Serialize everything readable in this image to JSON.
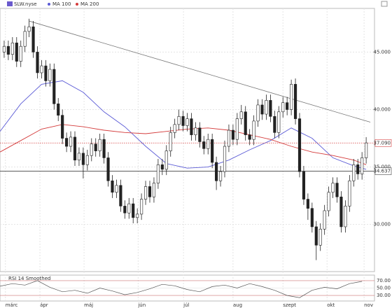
{
  "chart_data": {
    "type": "candlestick",
    "title": "SLW.nyse",
    "xlim": [
      0,
      90
    ],
    "ylim": [
      25.9,
      48.8
    ],
    "yticks": [
      {
        "value": 45,
        "label": "45.000"
      },
      {
        "value": 40,
        "label": "40.000"
      },
      {
        "value": 35,
        "label": "35.000"
      },
      {
        "value": 30,
        "label": "30.000"
      }
    ],
    "xticks": [
      {
        "value": 1.3,
        "label": "márc"
      },
      {
        "value": 9.6,
        "label": "ápr"
      },
      {
        "value": 20.2,
        "label": "máj"
      },
      {
        "value": 33.2,
        "label": "jún"
      },
      {
        "value": 44.1,
        "label": "júl"
      },
      {
        "value": 56,
        "label": "aug"
      },
      {
        "value": 68,
        "label": "szept"
      },
      {
        "value": 78.6,
        "label": "okt"
      },
      {
        "value": 87.5,
        "label": "nov"
      }
    ],
    "grid": true,
    "up_color": "#ffffff",
    "down_color": "#222222",
    "x": [
      1,
      2,
      3,
      4,
      5,
      6,
      7,
      8,
      9,
      10,
      11,
      12,
      13,
      14,
      15,
      16,
      17,
      18,
      19,
      20,
      21,
      22,
      23,
      24,
      25,
      26,
      27,
      28,
      29,
      30,
      31,
      32,
      33,
      34,
      35,
      36,
      37,
      38,
      39,
      40,
      41,
      42,
      43,
      44,
      45,
      46,
      47,
      48,
      49,
      50,
      51,
      52,
      53,
      54,
      55,
      56,
      57,
      58,
      59,
      60,
      61,
      62,
      63,
      64,
      65,
      66,
      67,
      68,
      69,
      70,
      71,
      72,
      73,
      74,
      75,
      76,
      77,
      78,
      79,
      80,
      81,
      82,
      83,
      84,
      85,
      86,
      87,
      88
    ],
    "open": [
      45.0,
      45.5,
      44.8,
      45.8,
      44.2,
      45.5,
      46.8,
      47.2,
      45.0,
      43.2,
      43.8,
      42.5,
      43.5,
      40.5,
      39.5,
      37.5,
      36.8,
      37.6,
      35.6,
      36.2,
      35.2,
      36.0,
      37.0,
      36.4,
      37.4,
      35.8,
      33.8,
      32.8,
      33.4,
      31.6,
      31.0,
      31.8,
      30.6,
      30.9,
      32.2,
      33.3,
      32.4,
      33.6,
      35.2,
      34.8,
      36.4,
      38.0,
      38.7,
      39.4,
      38.6,
      39.2,
      37.8,
      38.4,
      37.2,
      36.6,
      37.4,
      35.4,
      33.8,
      34.6,
      36.8,
      38.2,
      37.4,
      39.2,
      39.8,
      37.8,
      37.4,
      39.0,
      40.4,
      39.6,
      40.8,
      39.4,
      38.0,
      39.8,
      40.6,
      40.0,
      42.2,
      39.2,
      34.6,
      32.2,
      31.4,
      29.8,
      28.2,
      29.6,
      31.2,
      32.8,
      33.6,
      32.4,
      29.8,
      31.6,
      33.8,
      35.2,
      34.4,
      35.8
    ],
    "high": [
      46.0,
      46.0,
      46.3,
      46.3,
      46.0,
      47.3,
      47.9,
      47.7,
      45.5,
      44.3,
      44.3,
      44.0,
      44.0,
      41.0,
      40.0,
      38.0,
      38.1,
      38.1,
      36.7,
      36.7,
      36.5,
      37.5,
      37.5,
      37.9,
      37.9,
      36.3,
      34.3,
      33.9,
      33.9,
      32.1,
      32.3,
      32.3,
      31.4,
      32.7,
      33.8,
      33.8,
      34.1,
      35.7,
      35.7,
      36.9,
      38.5,
      39.2,
      40.0,
      39.9,
      39.7,
      39.7,
      38.9,
      38.9,
      37.7,
      37.9,
      37.9,
      35.9,
      35.1,
      37.3,
      38.7,
      38.7,
      39.7,
      40.4,
      40.3,
      38.3,
      39.5,
      40.9,
      40.9,
      41.3,
      41.3,
      39.9,
      40.3,
      41.1,
      41.1,
      42.6,
      42.7,
      39.7,
      35.1,
      32.7,
      31.9,
      30.3,
      30.1,
      31.7,
      33.3,
      34.1,
      34.1,
      32.9,
      32.1,
      34.3,
      35.7,
      35.7,
      36.3,
      37.6
    ],
    "low": [
      44.5,
      44.3,
      44.3,
      43.7,
      43.7,
      45.0,
      46.3,
      44.5,
      42.7,
      42.7,
      42.0,
      42.0,
      40.0,
      39.0,
      37.0,
      36.3,
      36.3,
      35.1,
      35.1,
      34.0,
      34.7,
      35.5,
      35.9,
      35.9,
      35.3,
      33.3,
      32.3,
      32.3,
      31.1,
      30.5,
      30.5,
      30.1,
      30.1,
      30.4,
      31.7,
      31.9,
      31.9,
      33.1,
      34.3,
      34.3,
      35.9,
      37.5,
      38.2,
      38.1,
      38.1,
      37.3,
      37.3,
      36.7,
      36.1,
      36.1,
      34.9,
      33.0,
      33.3,
      34.1,
      36.3,
      36.9,
      36.9,
      38.7,
      37.3,
      36.9,
      36.9,
      38.5,
      39.1,
      39.1,
      38.9,
      37.5,
      37.5,
      39.3,
      39.5,
      39.5,
      38.7,
      34.1,
      31.7,
      30.4,
      29.3,
      26.9,
      27.7,
      29.1,
      30.7,
      32.3,
      31.9,
      29.3,
      29.3,
      31.1,
      33.3,
      33.9,
      33.9,
      35.3
    ],
    "close": [
      45.5,
      44.8,
      45.8,
      44.2,
      45.5,
      46.8,
      47.2,
      45.0,
      43.2,
      43.8,
      42.5,
      43.5,
      40.5,
      39.5,
      37.5,
      36.8,
      37.6,
      35.6,
      36.2,
      35.2,
      36.0,
      37.0,
      36.4,
      37.4,
      35.8,
      33.8,
      32.8,
      33.4,
      31.6,
      31.0,
      31.8,
      30.6,
      30.9,
      32.2,
      33.3,
      32.4,
      33.6,
      35.2,
      34.8,
      36.4,
      38.0,
      38.7,
      39.4,
      38.6,
      39.2,
      37.8,
      38.4,
      37.2,
      36.6,
      37.4,
      35.4,
      33.8,
      34.6,
      36.8,
      38.2,
      37.4,
      39.2,
      39.8,
      37.8,
      37.4,
      39.0,
      40.4,
      39.6,
      40.8,
      39.4,
      38.0,
      39.8,
      40.6,
      40.0,
      42.2,
      39.2,
      34.6,
      32.2,
      31.4,
      29.8,
      28.2,
      29.6,
      31.2,
      32.8,
      33.6,
      32.4,
      29.8,
      31.6,
      33.8,
      35.2,
      34.4,
      35.8,
      37.1
    ],
    "series": [
      {
        "name": "MA 100",
        "color": "#5b5bd6",
        "x": [
          0,
          5,
          10,
          15,
          20,
          25,
          30,
          35,
          40,
          45,
          50,
          55,
          60,
          65,
          70,
          75,
          80,
          85,
          88
        ],
        "values": [
          38.1,
          40.5,
          42.2,
          42.5,
          41.5,
          39.8,
          38.5,
          36.8,
          35.3,
          34.9,
          35.0,
          35.6,
          36.5,
          37.3,
          38.4,
          37.5,
          35.8,
          35.1,
          34.8
        ]
      },
      {
        "name": "MA 200",
        "color": "#d43b3b",
        "x": [
          0,
          5,
          10,
          15,
          20,
          25,
          30,
          35,
          40,
          45,
          50,
          55,
          60,
          65,
          70,
          75,
          80,
          85,
          88
        ],
        "values": [
          36.3,
          37.3,
          38.3,
          38.7,
          38.5,
          38.2,
          38.0,
          37.9,
          38.1,
          38.3,
          38.4,
          38.2,
          37.8,
          37.4,
          36.8,
          36.3,
          36.0,
          35.6,
          35.2
        ]
      }
    ],
    "trendline": {
      "x": [
        7,
        89
      ],
      "values": [
        47.7,
        38.9
      ],
      "color": "#777777"
    },
    "levels": [
      {
        "value": 37.09,
        "label": "37.090",
        "color": "#d43b3b"
      },
      {
        "value": 34.637,
        "label": "34.637",
        "color": "#444444"
      }
    ],
    "rsi": {
      "title": "RSI 14 Smoothed",
      "color": "#555555",
      "ylim": [
        15,
        85
      ],
      "yticks": [
        {
          "value": 70,
          "label": "70.00"
        },
        {
          "value": 50,
          "label": "50.00"
        },
        {
          "value": 30,
          "label": "30.00"
        }
      ],
      "x": [
        0,
        3,
        6,
        9,
        12,
        15,
        18,
        21,
        24,
        27,
        30,
        33,
        36,
        39,
        42,
        45,
        48,
        51,
        54,
        57,
        60,
        63,
        66,
        69,
        72,
        75,
        78,
        81,
        84,
        87
      ],
      "values": [
        55,
        62,
        58,
        70,
        52,
        40,
        44,
        36,
        50,
        42,
        32,
        38,
        48,
        60,
        56,
        46,
        40,
        54,
        58,
        50,
        62,
        54,
        44,
        30,
        24,
        44,
        52,
        48,
        62,
        68
      ]
    }
  }
}
